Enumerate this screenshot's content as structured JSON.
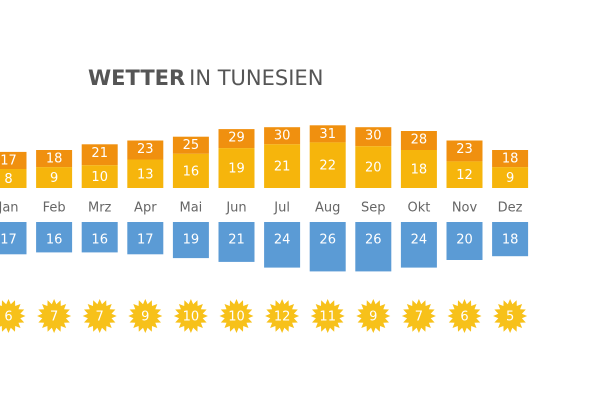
{
  "chart_data": {
    "type": "bar",
    "title_bold": "WETTER",
    "title_light": "IN TUNESIEN",
    "categories": [
      "Jan",
      "Feb",
      "Mrz",
      "Apr",
      "Mai",
      "Jun",
      "Jul",
      "Aug",
      "Sep",
      "Okt",
      "Nov",
      "Dez"
    ],
    "series": [
      {
        "color": "#f0900f",
        "values": [
          17,
          18,
          21,
          23,
          25,
          29,
          30,
          31,
          30,
          28,
          23,
          18
        ]
      },
      {
        "color": "#f6b50c",
        "values": [
          8,
          9,
          10,
          13,
          16,
          19,
          21,
          22,
          20,
          18,
          12,
          9
        ]
      },
      {
        "color": "#5b9bd5",
        "values": [
          17,
          16,
          16,
          17,
          19,
          21,
          24,
          26,
          26,
          24,
          20,
          18
        ]
      },
      {
        "color": "#f7c11a",
        "values": [
          6,
          7,
          7,
          9,
          10,
          10,
          12,
          11,
          9,
          7,
          6,
          5
        ]
      }
    ]
  }
}
